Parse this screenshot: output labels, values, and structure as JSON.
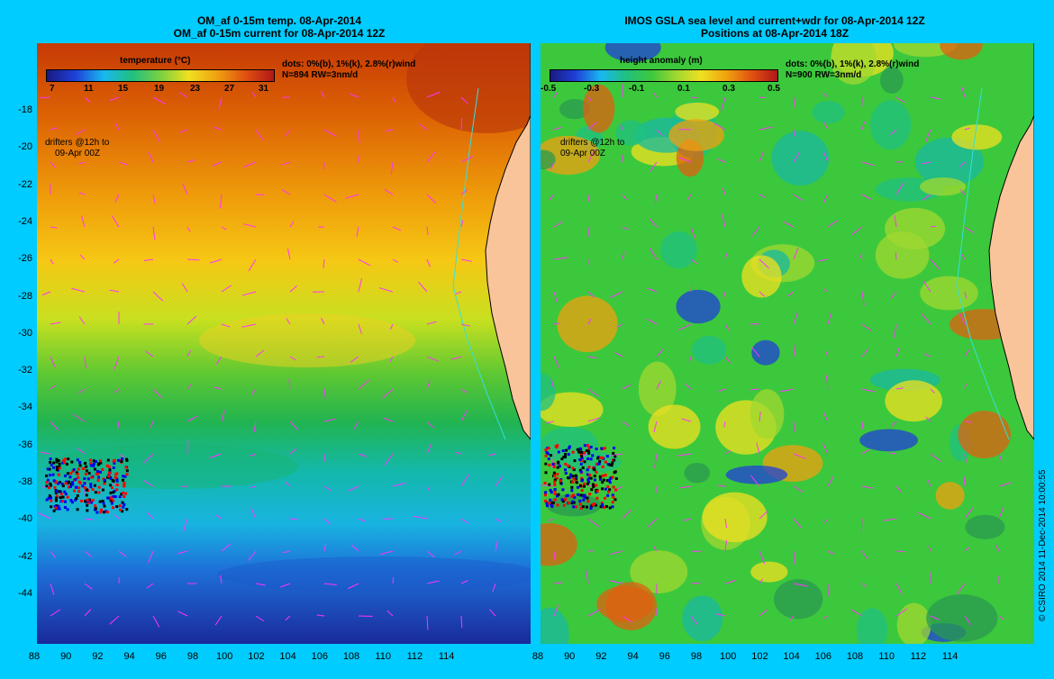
{
  "left": {
    "title_line1": "OM_af 0-15m temp. 08-Apr-2014",
    "title_line2": "OM_af 0-15m current for 08-Apr-2014 12Z",
    "colorbar_title": "temperature (°C)",
    "colorbar_ticks": [
      "7",
      "11",
      "15",
      "19",
      "23",
      "27",
      "31"
    ],
    "dots_note": "dots: 0%(b), 1%(k), 2.8%(r)wind",
    "n_note": "N=894 RW=3nm/d",
    "drifters_line1": "drifters @12h to",
    "drifters_line2": "09-Apr 00Z"
  },
  "right": {
    "title_line1": "IMOS GSLA sea level and current+wdr for 08-Apr-2014 12Z",
    "title_line2": "Positions at 08-Apr-2014 18Z",
    "colorbar_title": "height anomaly (m)",
    "colorbar_ticks": [
      "-0.5",
      "-0.3",
      "-0.1",
      "0.1",
      "0.3",
      "0.5"
    ],
    "dots_note": "dots: 0%(b), 1%(k), 2.8%(r)wind",
    "n_note": "N=900 RW=3nm/d",
    "drifters_line1": "drifters @12h to",
    "drifters_line2": "09-Apr 00Z"
  },
  "y_ticks": [
    "-18",
    "-20",
    "-22",
    "-24",
    "-26",
    "-28",
    "-30",
    "-32",
    "-34",
    "-36",
    "-38",
    "-40",
    "-42",
    "-44"
  ],
  "x_ticks": [
    "88",
    "90",
    "92",
    "94",
    "96",
    "98",
    "100",
    "102",
    "104",
    "106",
    "108",
    "110",
    "112",
    "114"
  ],
  "credit": "© CSIRO 2014   11-Dec-2014 10:00:55",
  "colors": {
    "background": "#00ccff",
    "land": "#f9c49a",
    "vector": "#ff33ff",
    "coast": "#33e0e0"
  }
}
